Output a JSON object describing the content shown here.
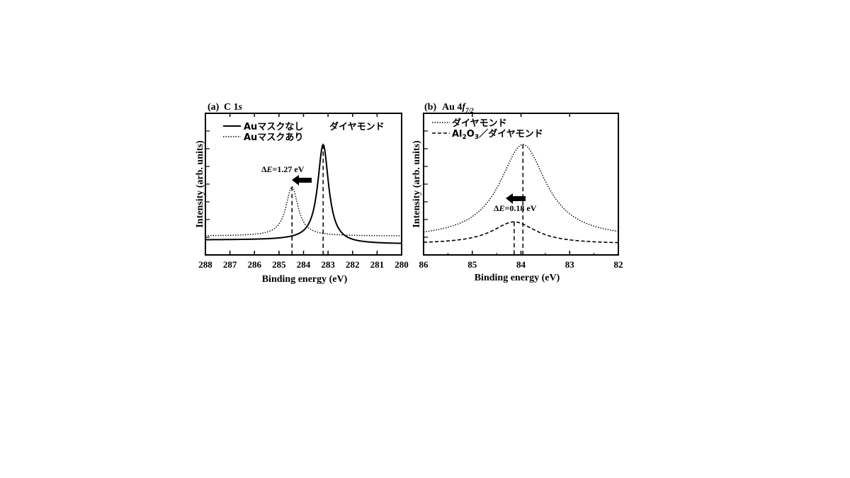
{
  "chart_data": [
    {
      "type": "line",
      "panel_label": "(a)",
      "title": "C 1s",
      "xlabel": "Binding energy (eV)",
      "ylabel": "Intensity (arb. units)",
      "xlim": [
        288,
        280
      ],
      "x_reversed": true,
      "ylim": [
        0,
        1.1
      ],
      "x_ticks": [
        "288",
        "287",
        "286",
        "285",
        "284",
        "283",
        "282",
        "281",
        "280"
      ],
      "sample_label": "ダイヤモンド",
      "legend_position": "top-left",
      "annotation": "ΔE=1.27 eV",
      "arrow_direction": "left",
      "series": [
        {
          "name": "Auマスクなし",
          "style": "solid",
          "peak_x": 283.2,
          "peak_y": 1.0,
          "baseline": 0.01,
          "baseline_low_side": 0.05,
          "width": 0.27
        },
        {
          "name": "Auマスクあり",
          "style": "dotted",
          "peak_x": 284.47,
          "peak_y": 0.58,
          "baseline": 0.09,
          "width": 0.3
        }
      ],
      "marker_lines_x": [
        284.47,
        283.2
      ]
    },
    {
      "type": "line",
      "panel_label": "(b)",
      "title": "Au 4f7/2",
      "xlabel": "Binding energy (eV)",
      "ylabel": "Intensity (arb. units)",
      "xlim": [
        86,
        82
      ],
      "x_reversed": true,
      "ylim": [
        0,
        1.1
      ],
      "x_ticks": [
        "86",
        "85",
        "84",
        "83",
        "82"
      ],
      "legend_position": "top-left",
      "annotation": "ΔE=0.18 eV",
      "arrow_direction": "left",
      "series": [
        {
          "name": "ダイヤモンド",
          "style": "dotted",
          "peak_x": 83.96,
          "peak_y": 1.0,
          "baseline": 0.06,
          "width": 0.58
        },
        {
          "name": "Al2O3／ダイヤモンド",
          "style": "dashed",
          "peak_x": 84.14,
          "peak_y": 0.23,
          "baseline": 0.01,
          "width": 0.55
        }
      ],
      "marker_lines_x": [
        84.14,
        83.96
      ]
    }
  ]
}
